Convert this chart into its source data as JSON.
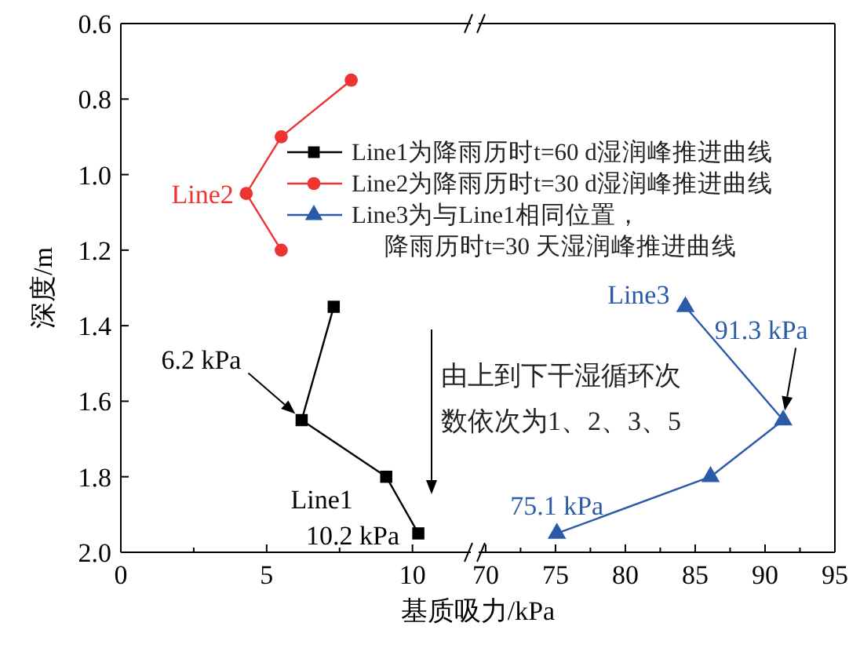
{
  "chart_data": [
    {
      "type": "line",
      "xlabel": "基质吸力/kPa",
      "ylabel": "深度/m",
      "xlim": [
        0,
        12
      ],
      "xticks": [
        0,
        {
          "value": 2.5,
          "label": null
        },
        5,
        {
          "value": 7.5,
          "label": null
        },
        10
      ],
      "ylim": [
        2.0,
        0.6
      ],
      "yticks": [
        0.6,
        0.8,
        {
          "value": 1,
          "label": "1.0"
        },
        1.2,
        1.4,
        1.6,
        1.8,
        {
          "value": 2,
          "label": "2.0"
        }
      ],
      "legend": "top right",
      "series": [
        {
          "name": "Line1为降雨历时t=60 d湿润峰推进曲线",
          "color": "#000000",
          "marker": "square",
          "x": [
            7.3,
            6.2,
            9.1,
            10.2
          ],
          "values": [
            1.35,
            1.65,
            1.8,
            1.95
          ]
        },
        {
          "name": "Line2为降雨历时t=30 d湿润峰推进曲线",
          "color": "#ee3333",
          "marker": "circle",
          "x": [
            7.9,
            5.5,
            4.3,
            5.5
          ],
          "values": [
            0.75,
            0.9,
            1.05,
            1.2
          ]
        }
      ],
      "annotations": [
        {
          "text": "Line2",
          "x": 4.3,
          "y": 1.05
        },
        {
          "text": "6.2 kPa",
          "x": 6.2,
          "y": 1.65
        },
        {
          "text": "Line1",
          "x": 9.1,
          "y": 1.8
        },
        {
          "text": "10.2 kPa",
          "x": 10.2,
          "y": 1.95
        },
        "由上到下干湿循环次数依次为1、2、3、5"
      ]
    },
    {
      "type": "line",
      "xlim": [
        69.5,
        95
      ],
      "xticks": [
        70,
        {
          "value": 72.5,
          "label": null
        },
        75,
        {
          "value": 77.5,
          "label": null
        },
        80,
        {
          "value": 82.5,
          "label": null
        },
        85,
        {
          "value": 87.5,
          "label": null
        },
        90,
        {
          "value": 92.5,
          "label": null
        },
        95
      ],
      "ylim": [
        2.0,
        0.6
      ],
      "tick_labels": "x",
      "legend": "top left",
      "series": [
        {
          "name": "Line3为与Line1相同位置，降雨历时t=30 天湿润峰推进曲线",
          "color": "#2b5aa8",
          "marker": "triangle",
          "x": [
            84.3,
            91.3,
            86.1,
            75.1
          ],
          "values": [
            1.35,
            1.65,
            1.8,
            1.95
          ]
        }
      ],
      "annotations": [
        {
          "text": "Line3",
          "x": 84.3,
          "y": 1.35
        },
        {
          "text": "91.3 kPa",
          "x": 91.3,
          "y": 1.65
        },
        {
          "text": "75.1 kPa",
          "x": 75.1,
          "y": 1.95
        }
      ]
    }
  ]
}
